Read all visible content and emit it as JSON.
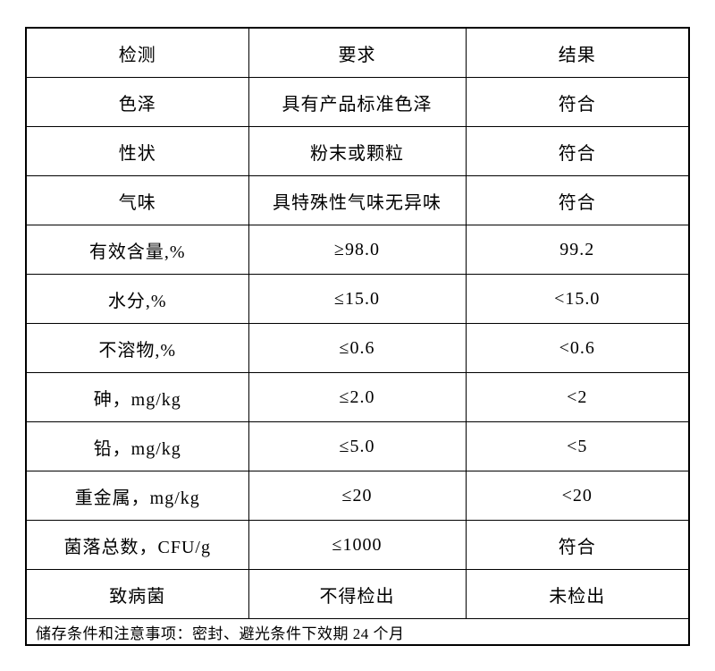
{
  "table": {
    "headers": [
      "检测",
      "要求",
      "结果"
    ],
    "rows": [
      {
        "test": "色泽",
        "requirement": "具有产品标准色泽",
        "result": "符合"
      },
      {
        "test": "性状",
        "requirement": "粉末或颗粒",
        "result": "符合"
      },
      {
        "test": "气味",
        "requirement": "具特殊性气味无异味",
        "result": "符合"
      },
      {
        "test": "有效含量,%",
        "requirement": "≥98.0",
        "result": "99.2"
      },
      {
        "test": "水分,%",
        "requirement": "≤15.0",
        "result": "<15.0"
      },
      {
        "test": "不溶物,%",
        "requirement": "≤0.6",
        "result": "<0.6"
      },
      {
        "test": "砷，mg/kg",
        "requirement": "≤2.0",
        "result": "<2"
      },
      {
        "test": "铅，mg/kg",
        "requirement": "≤5.0",
        "result": "<5"
      },
      {
        "test": "重金属，mg/kg",
        "requirement": "≤20",
        "result": "<20"
      },
      {
        "test": "菌落总数，CFU/g",
        "requirement": "≤1000",
        "result": "符合"
      },
      {
        "test": "致病菌",
        "requirement": "不得检出",
        "result": "未检出"
      }
    ],
    "footer": "储存条件和注意事项：密封、避光条件下效期 24 个月"
  }
}
